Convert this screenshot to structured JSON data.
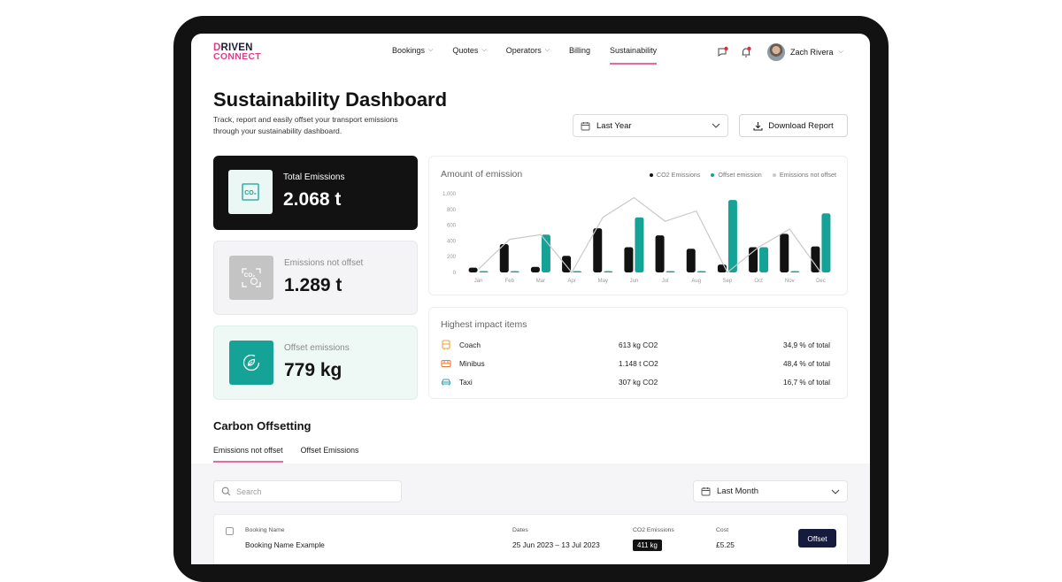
{
  "brand": {
    "line1_letter": "D",
    "line1_rest": "RIVEN",
    "line2": "CONNECT"
  },
  "nav": {
    "items": [
      {
        "label": "Bookings",
        "chevron": true
      },
      {
        "label": "Quotes",
        "chevron": true
      },
      {
        "label": "Operators",
        "chevron": true
      },
      {
        "label": "Billing",
        "chevron": false
      },
      {
        "label": "Sustainability",
        "chevron": false,
        "active": true
      }
    ],
    "user_name": "Zach Rivera",
    "icons": [
      "chat-icon",
      "bell-icon"
    ]
  },
  "header": {
    "title": "Sustainability Dashboard",
    "subtitle": "Track, report and easily offset your transport emissions through your sustainability dashboard.",
    "period": "Last Year",
    "download_label": "Download Report"
  },
  "stats": {
    "total_label": "Total Emissions",
    "total_value": "2.068 t",
    "not_offset_label": "Emissions not offset",
    "not_offset_value": "1.289 t",
    "offset_label": "Offset emissions",
    "offset_value": "779 kg"
  },
  "colors": {
    "black": "#121212",
    "teal": "#14a396",
    "grey_line": "#c9c9c9",
    "accent_pink": "#e86aa0",
    "navy": "#161a3d"
  },
  "chart_data": {
    "type": "bar",
    "title": "Amount of emission",
    "categories": [
      "Jan",
      "Feb",
      "Mar",
      "Apr",
      "May",
      "Jun",
      "Jul",
      "Aug",
      "Sep",
      "Oct",
      "Nov",
      "Dec"
    ],
    "series": [
      {
        "name": "CO2 Emissions",
        "kind": "bar",
        "color": "#121212",
        "values": [
          60,
          360,
          70,
          210,
          560,
          320,
          470,
          300,
          100,
          320,
          490,
          330
        ]
      },
      {
        "name": "Offset emission",
        "kind": "bar",
        "color": "#14a396",
        "values": [
          10,
          10,
          480,
          10,
          10,
          700,
          10,
          10,
          920,
          320,
          10,
          750
        ]
      },
      {
        "name": "Emissions not offset",
        "kind": "line",
        "color": "#c9c9c9",
        "values": [
          40,
          420,
          480,
          0,
          700,
          950,
          650,
          780,
          0,
          320,
          550,
          0
        ]
      }
    ],
    "y_ticks": [
      "0",
      "200",
      "400",
      "600",
      "800",
      "1,000"
    ],
    "ylim": [
      0,
      1000
    ],
    "legend_position": "top-right",
    "grid": false
  },
  "impact": {
    "title": "Highest impact items",
    "rows": [
      {
        "icon": "bus-icon",
        "name": "Coach",
        "amount": "613 kg CO2",
        "share": "34,9 % of total",
        "color": "#f0a23a"
      },
      {
        "icon": "minibus-icon",
        "name": "Minibus",
        "amount": "1.148 t CO2",
        "share": "48,4 % of total",
        "color": "#ee7b36"
      },
      {
        "icon": "car-icon",
        "name": "Taxi",
        "amount": "307 kg CO2",
        "share": "16,7 % of total",
        "color": "#3aa8b8"
      }
    ]
  },
  "offsetting": {
    "title": "Carbon Offsetting",
    "tabs": [
      "Emissions not offset",
      "Offset Emissions"
    ],
    "search_placeholder": "Search",
    "period": "Last Month",
    "table": {
      "headers": {
        "name": "Booking Name",
        "dates": "Dates",
        "co2": "CO2 Emissions",
        "cost": "Cost"
      },
      "row": {
        "name": "Booking Name Example",
        "dates": "25 Jun 2023 – 13 Jul 2023",
        "co2": "411 kg",
        "cost": "£5.25",
        "action": "Offset"
      }
    }
  }
}
